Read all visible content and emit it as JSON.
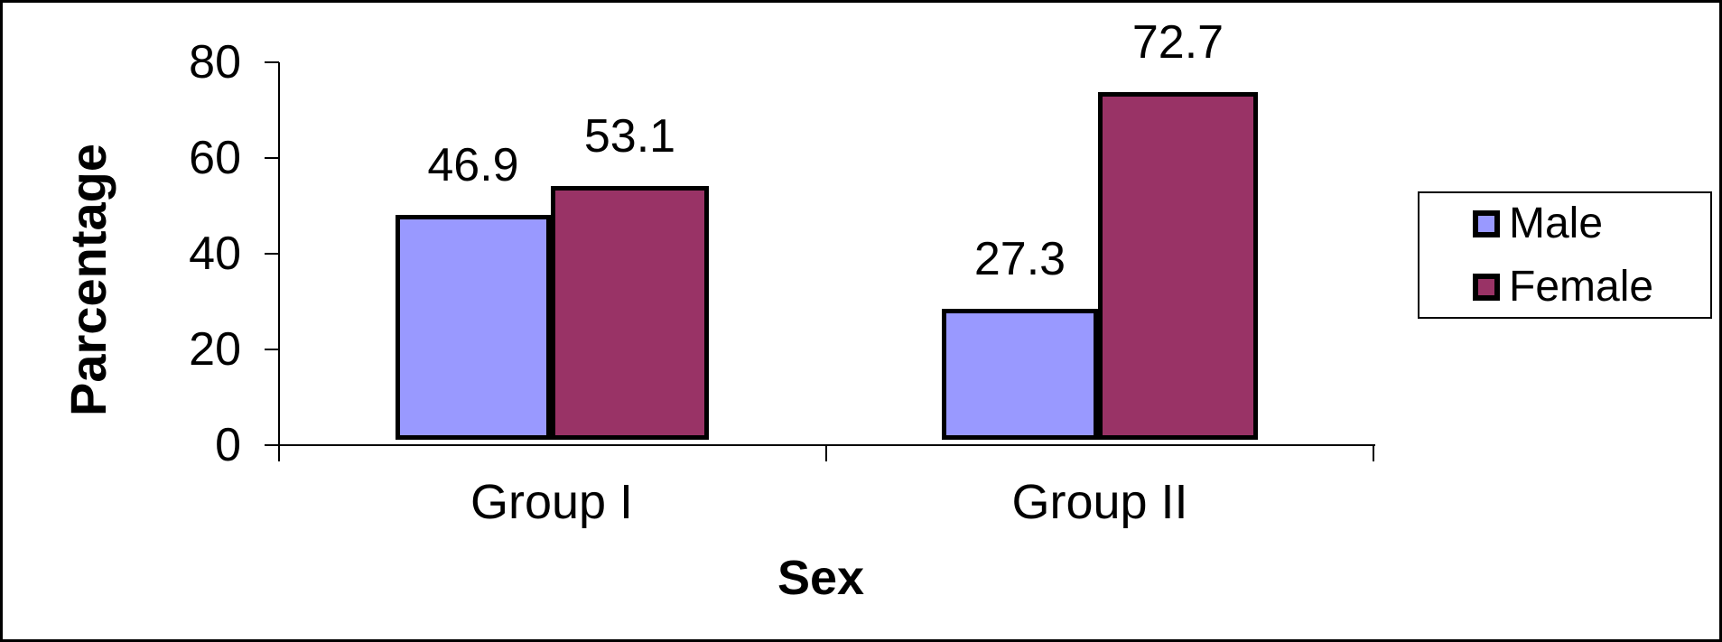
{
  "chart_data": {
    "type": "bar",
    "categories": [
      "Group I",
      "Group II"
    ],
    "series": [
      {
        "name": "Male",
        "color": "#9999FF",
        "values": [
          46.9,
          27.3
        ]
      },
      {
        "name": "Female",
        "color": "#993366",
        "values": [
          53.1,
          72.7
        ]
      }
    ],
    "xlabel": "Sex",
    "ylabel": "Parcentage",
    "ylim": [
      0,
      80
    ],
    "yticks": [
      0,
      20,
      40,
      60,
      80
    ],
    "legend_position": "right",
    "grid": false,
    "bar_border_color": "#000000",
    "data_labels": {
      "group1_male": "46.9",
      "group1_female": "53.1",
      "group2_male": "27.3",
      "group2_female": "72.7"
    }
  }
}
